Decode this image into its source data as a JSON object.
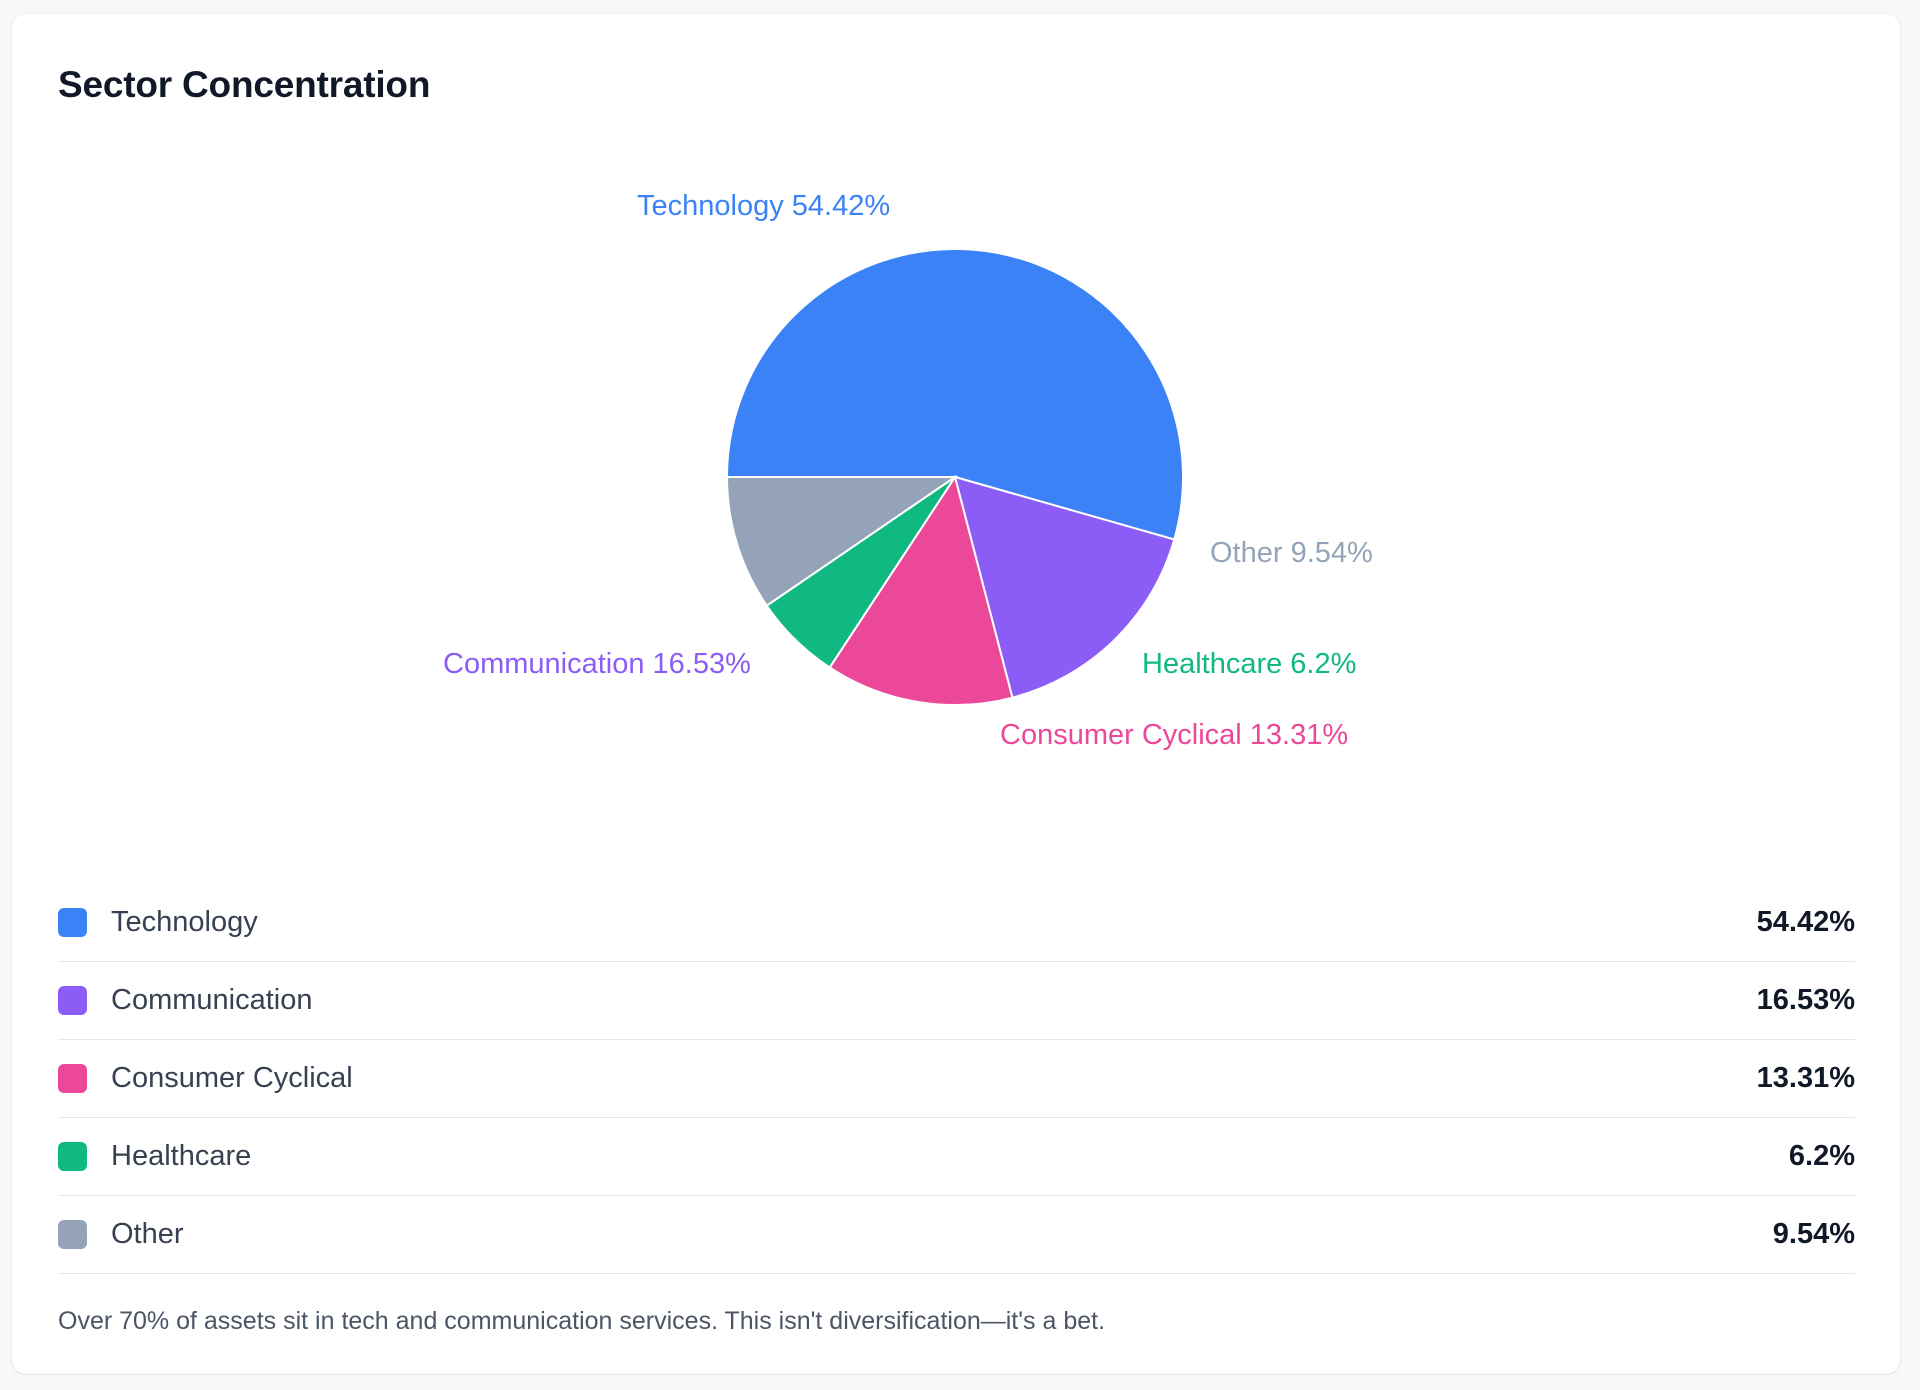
{
  "card": {
    "title": "Sector Concentration",
    "footnote": "Over 70% of assets sit in tech and communication services. This isn't diversification—it's a bet."
  },
  "chart_data": {
    "type": "pie",
    "title": "",
    "slices": [
      {
        "name": "Technology",
        "value": 54.42,
        "label": "Technology 54.42%",
        "display": "54.42%",
        "color": "#3b82f6"
      },
      {
        "name": "Communication",
        "value": 16.53,
        "label": "Communication 16.53%",
        "display": "16.53%",
        "color": "#8b5cf6"
      },
      {
        "name": "Consumer Cyclical",
        "value": 13.31,
        "label": "Consumer Cyclical 13.31%",
        "display": "13.31%",
        "color": "#ec4899"
      },
      {
        "name": "Healthcare",
        "value": 6.2,
        "label": "Healthcare 6.2%",
        "display": "6.2%",
        "color": "#10b981"
      },
      {
        "name": "Other",
        "value": 9.54,
        "label": "Other 9.54%",
        "display": "9.54%",
        "color": "#94a3b8"
      }
    ],
    "legend": "bottom"
  }
}
